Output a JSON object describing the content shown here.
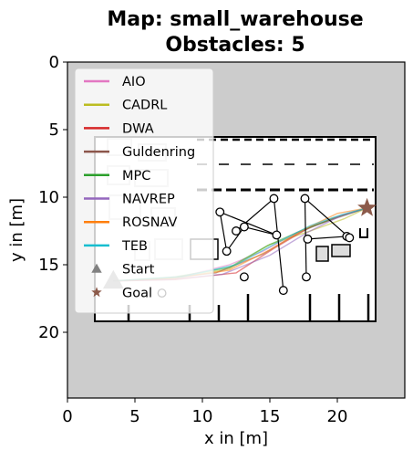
{
  "chart_data": {
    "type": "map",
    "title_line1": "Map: small_warehouse",
    "title_line2": "Obstacles: 5",
    "xlabel": "x in [m]",
    "ylabel": "y in [m]",
    "xlim": [
      0,
      25
    ],
    "ylim": [
      0,
      25
    ],
    "y_inverted": true,
    "xticks": [
      0,
      5,
      10,
      15,
      20
    ],
    "yticks": [
      0,
      5,
      10,
      15,
      20
    ],
    "xtick_labels": [
      "0",
      "5",
      "10",
      "15",
      "20"
    ],
    "ytick_labels": [
      "0",
      "5",
      "10",
      "15",
      "20"
    ],
    "background_color": "#cccccc",
    "free_space_color": "#ffffff",
    "legend_position": "upper-left",
    "series": [
      {
        "name": "AIO",
        "color": "#e377c2"
      },
      {
        "name": "CADRL",
        "color": "#bcbd22"
      },
      {
        "name": "DWA",
        "color": "#d62728"
      },
      {
        "name": "Guldenring",
        "color": "#8c564b"
      },
      {
        "name": "MPC",
        "color": "#2ca02c"
      },
      {
        "name": "NAVREP",
        "color": "#9467bd"
      },
      {
        "name": "ROSNAV",
        "color": "#ff7f0e"
      },
      {
        "name": "TEB",
        "color": "#17becf"
      }
    ],
    "start": {
      "label": "Start",
      "x": 3.4,
      "y": 16.2,
      "color": "#808080"
    },
    "goal": {
      "label": "Goal",
      "x": 22.2,
      "y": 10.8,
      "color": "#8c5a4a"
    },
    "obstacle_waypoints": [
      {
        "x": 11.3,
        "y": 11.1
      },
      {
        "x": 12.5,
        "y": 12.5
      },
      {
        "x": 13.1,
        "y": 12.2
      },
      {
        "x": 11.8,
        "y": 14.0
      },
      {
        "x": 15.3,
        "y": 10.1
      },
      {
        "x": 15.5,
        "y": 12.8
      },
      {
        "x": 17.6,
        "y": 10.1
      },
      {
        "x": 17.8,
        "y": 13.1
      },
      {
        "x": 20.7,
        "y": 12.9
      },
      {
        "x": 20.9,
        "y": 13.0
      },
      {
        "x": 13.1,
        "y": 15.9
      },
      {
        "x": 16.0,
        "y": 16.9
      },
      {
        "x": 17.7,
        "y": 15.9
      },
      {
        "x": 7.0,
        "y": 17.1
      }
    ],
    "obstacle_links": [
      [
        0,
        3
      ],
      [
        3,
        2
      ],
      [
        2,
        5
      ],
      [
        4,
        11
      ],
      [
        4,
        1
      ],
      [
        6,
        9
      ],
      [
        6,
        12
      ],
      [
        7,
        8
      ],
      [
        0,
        5
      ]
    ],
    "trajectories": [
      {
        "series": "AIO",
        "points": [
          [
            3.4,
            16.2
          ],
          [
            8,
            16.0
          ],
          [
            12,
            15.0
          ],
          [
            14.5,
            14.0
          ],
          [
            17,
            12.6
          ],
          [
            19.5,
            11.7
          ],
          [
            22.2,
            10.8
          ]
        ]
      },
      {
        "series": "CADRL",
        "points": [
          [
            3.4,
            16.2
          ],
          [
            8,
            16.0
          ],
          [
            12,
            15.3
          ],
          [
            15,
            13.5
          ],
          [
            18,
            12.5
          ],
          [
            20.5,
            11.6
          ],
          [
            22.2,
            10.8
          ]
        ]
      },
      {
        "series": "DWA",
        "points": [
          [
            3.4,
            16.2
          ],
          [
            8,
            16.1
          ],
          [
            12.5,
            15.6
          ],
          [
            15.3,
            13.8
          ],
          [
            18,
            12.2
          ],
          [
            20.5,
            11.3
          ],
          [
            22.2,
            10.8
          ]
        ]
      },
      {
        "series": "Guldenring",
        "points": [
          [
            3.4,
            16.2
          ],
          [
            7,
            16.0
          ],
          [
            11,
            15.6
          ],
          [
            14.5,
            14.2
          ],
          [
            17,
            12.7
          ],
          [
            19.5,
            11.6
          ],
          [
            22.2,
            10.8
          ]
        ]
      },
      {
        "series": "MPC",
        "points": [
          [
            3.4,
            16.2
          ],
          [
            8,
            15.9
          ],
          [
            12,
            15.2
          ],
          [
            14.8,
            13.6
          ],
          [
            17.5,
            12.4
          ],
          [
            20,
            11.5
          ],
          [
            22.2,
            10.8
          ]
        ]
      },
      {
        "series": "NAVREP",
        "points": [
          [
            3.4,
            16.2
          ],
          [
            7.5,
            16.1
          ],
          [
            11.5,
            15.7
          ],
          [
            15,
            14.3
          ],
          [
            17.8,
            12.6
          ],
          [
            20.2,
            11.4
          ],
          [
            22.2,
            10.8
          ]
        ]
      },
      {
        "series": "ROSNAV",
        "points": [
          [
            3.4,
            16.2
          ],
          [
            8,
            16.0
          ],
          [
            12,
            15.4
          ],
          [
            15,
            13.9
          ],
          [
            17.7,
            12.3
          ],
          [
            20,
            11.2
          ],
          [
            22.2,
            10.8
          ]
        ]
      },
      {
        "series": "TEB",
        "points": [
          [
            3.4,
            16.2
          ],
          [
            8.5,
            15.9
          ],
          [
            12.5,
            15.0
          ],
          [
            15.5,
            13.4
          ],
          [
            18,
            12.1
          ],
          [
            20.3,
            11.3
          ],
          [
            22.2,
            10.8
          ]
        ]
      }
    ]
  }
}
